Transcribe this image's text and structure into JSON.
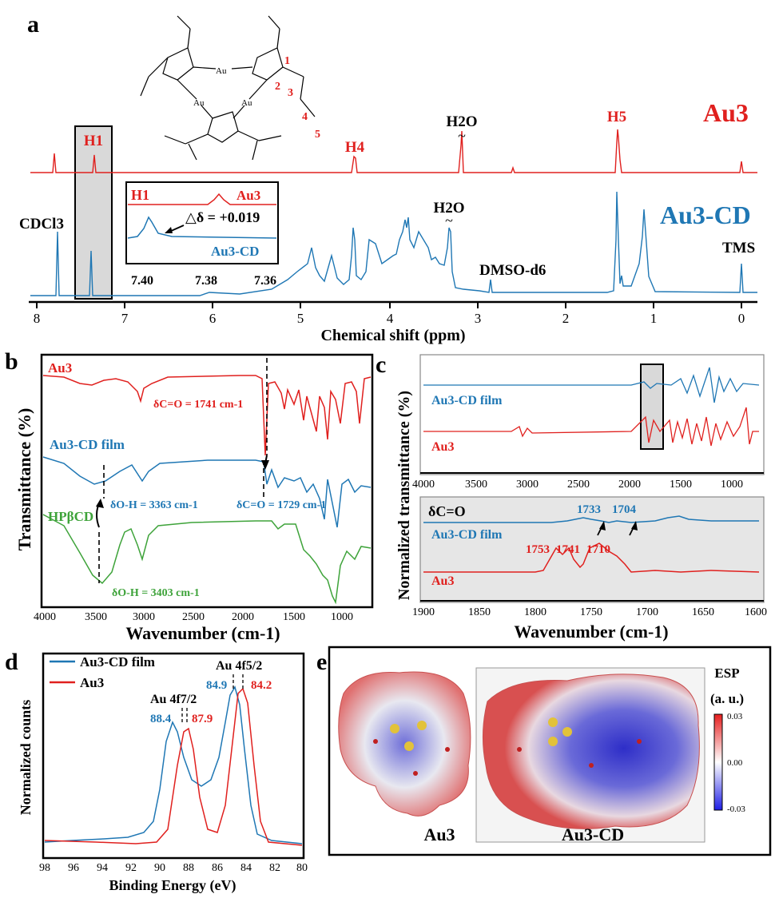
{
  "panel_a": {
    "label": "a",
    "xlabel": "Chemical shift (ppm)",
    "ticks": [
      "8",
      "7",
      "6",
      "5",
      "4",
      "3",
      "2",
      "1",
      "0"
    ],
    "peak_labels": {
      "h1": "H1",
      "h4": "H4",
      "h5": "H5",
      "h2o_top": "H2O",
      "h2o_bottom": "H2O",
      "cdcl3": "CDCl3",
      "dmso": "DMSO-d6",
      "tms": "TMS"
    },
    "series_labels": {
      "au3": "Au3",
      "au3cd": "Au3-CD"
    },
    "molecule_numbers": [
      "1",
      "2",
      "3",
      "4",
      "5"
    ],
    "molecule_atom": "Au",
    "inset": {
      "h1": "H1",
      "au3": "Au3",
      "au3cd": "Au3-CD",
      "delta": "△δ = +0.019",
      "ticks": [
        "7.40",
        "7.38",
        "7.36"
      ]
    }
  },
  "panel_b": {
    "label": "b",
    "ylabel": "Transmittance (%)",
    "xlabel": "Wavenumber (cm-1)",
    "ticks": [
      "4000",
      "3500",
      "3000",
      "2500",
      "2000",
      "1500",
      "1000"
    ],
    "series": {
      "au3": "Au3",
      "film": "Au3-CD film",
      "hpbcd": "HPβCD"
    },
    "annotations": {
      "co_au3": "δC=O = 1741 cm-1",
      "oh_film": "δO-H = 3363 cm-1",
      "co_film": "δC=O = 1729 cm-1",
      "oh_hp": "δO-H = 3403 cm-1"
    }
  },
  "panel_c": {
    "label": "c",
    "ylabel": "Normalized transmittance (%)",
    "xlabel": "Wavenumber (cm-1)",
    "top_ticks": [
      "4000",
      "3500",
      "3000",
      "2500",
      "2000",
      "1500",
      "1000"
    ],
    "bottom_ticks": [
      "1900",
      "1850",
      "1800",
      "1750",
      "1700",
      "1650",
      "1600"
    ],
    "series": {
      "film": "Au3-CD film",
      "au3": "Au3"
    },
    "bottom_title": "δC=O",
    "peaks_film": [
      "1733",
      "1704"
    ],
    "peaks_au3": [
      "1753",
      "1741",
      "1710"
    ]
  },
  "panel_d": {
    "label": "d",
    "ylabel": "Normalized counts",
    "xlabel": "Binding Energy (eV)",
    "ticks": [
      "98",
      "96",
      "94",
      "92",
      "90",
      "88",
      "86",
      "84",
      "82",
      "80"
    ],
    "legend": {
      "film": "Au3-CD film",
      "au3": "Au3"
    },
    "peak_titles": {
      "f72": "Au 4f7/2",
      "f52": "Au 4f5/2"
    },
    "values": {
      "film72": "88.4",
      "au372": "87.9",
      "film52": "84.9",
      "au352": "84.2"
    },
    "chart_data": {
      "type": "line",
      "xlabel": "Binding Energy (eV)",
      "ylabel": "Normalized counts",
      "xlim": [
        98,
        80
      ],
      "series": [
        {
          "name": "Au3-CD film",
          "peaks_eV": [
            88.4,
            84.9
          ]
        },
        {
          "name": "Au3",
          "peaks_eV": [
            87.9,
            84.2
          ]
        }
      ]
    }
  },
  "panel_e": {
    "label": "e",
    "captions": {
      "left": "Au3",
      "right": "Au3-CD"
    },
    "colorbar": {
      "title1": "ESP",
      "title2": "(a. u.)",
      "max": "0.03",
      "mid": "0.00",
      "min": "-0.03"
    }
  },
  "colors": {
    "red": "#e0201e",
    "blue": "#1f77b4",
    "green": "#3ea33a",
    "box": "#d9d9d9"
  }
}
